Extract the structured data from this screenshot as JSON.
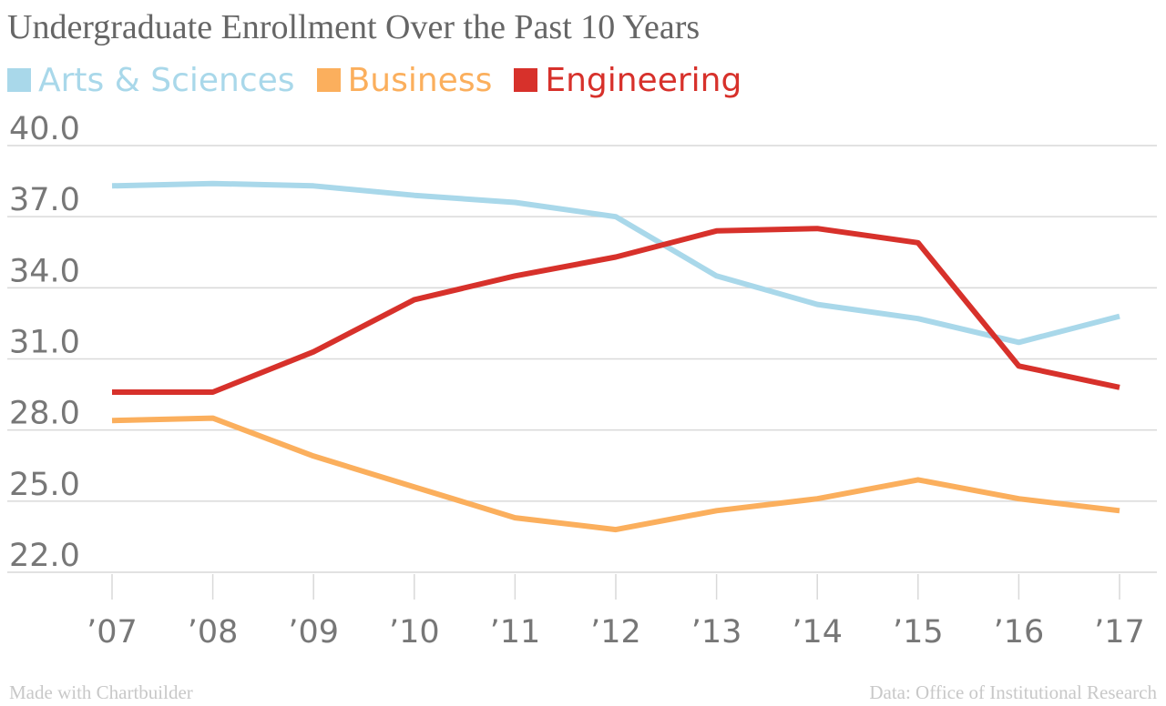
{
  "chart_data": {
    "type": "line",
    "title": "Undergraduate Enrollment Over the Past 10 Years",
    "categories": [
      "’07",
      "’08",
      "’09",
      "’10",
      "’11",
      "’12",
      "’13",
      "’14",
      "’15",
      "’16",
      "’17"
    ],
    "yticks": [
      "40.0",
      "37.0",
      "34.0",
      "31.0",
      "28.0",
      "25.0",
      "22.0"
    ],
    "ylim": [
      22,
      40
    ],
    "grid": true,
    "legend_position": "top-left",
    "series": [
      {
        "name": "Arts & Sciences",
        "color": "#a9d8ea",
        "values": [
          38.3,
          38.4,
          38.3,
          37.9,
          37.6,
          37.0,
          34.5,
          33.3,
          32.7,
          31.7,
          32.8
        ]
      },
      {
        "name": "Business",
        "color": "#fbaf5d",
        "values": [
          28.4,
          28.5,
          26.9,
          25.6,
          24.3,
          23.8,
          24.6,
          25.1,
          25.9,
          25.1,
          24.6
        ]
      },
      {
        "name": "Engineering",
        "color": "#d7312b",
        "values": [
          29.6,
          29.6,
          31.3,
          33.5,
          34.5,
          35.3,
          36.4,
          36.5,
          35.9,
          30.7,
          29.8
        ]
      }
    ]
  },
  "footer": {
    "left": "Made with Chartbuilder",
    "right": "Data: Office of Institutional Research"
  }
}
